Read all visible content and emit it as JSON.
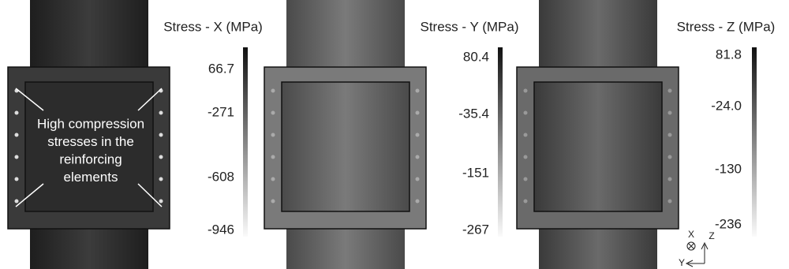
{
  "panels": [
    {
      "title": "Stress - X (MPa)",
      "ticks": [
        "66.7",
        "-271",
        "-608",
        "-946"
      ]
    },
    {
      "title": "Stress - Y (MPa)",
      "ticks": [
        "80.4",
        "-35.4",
        "-151",
        "-267"
      ]
    },
    {
      "title": "Stress - Z (MPa)",
      "ticks": [
        "81.8",
        "-24.0",
        "-130",
        "-236"
      ]
    }
  ],
  "annotation": {
    "lines": [
      "High compression",
      "stresses in the",
      "reinforcing",
      "elements"
    ]
  },
  "triad": {
    "x": "X",
    "z": "Z",
    "y": "Y"
  }
}
